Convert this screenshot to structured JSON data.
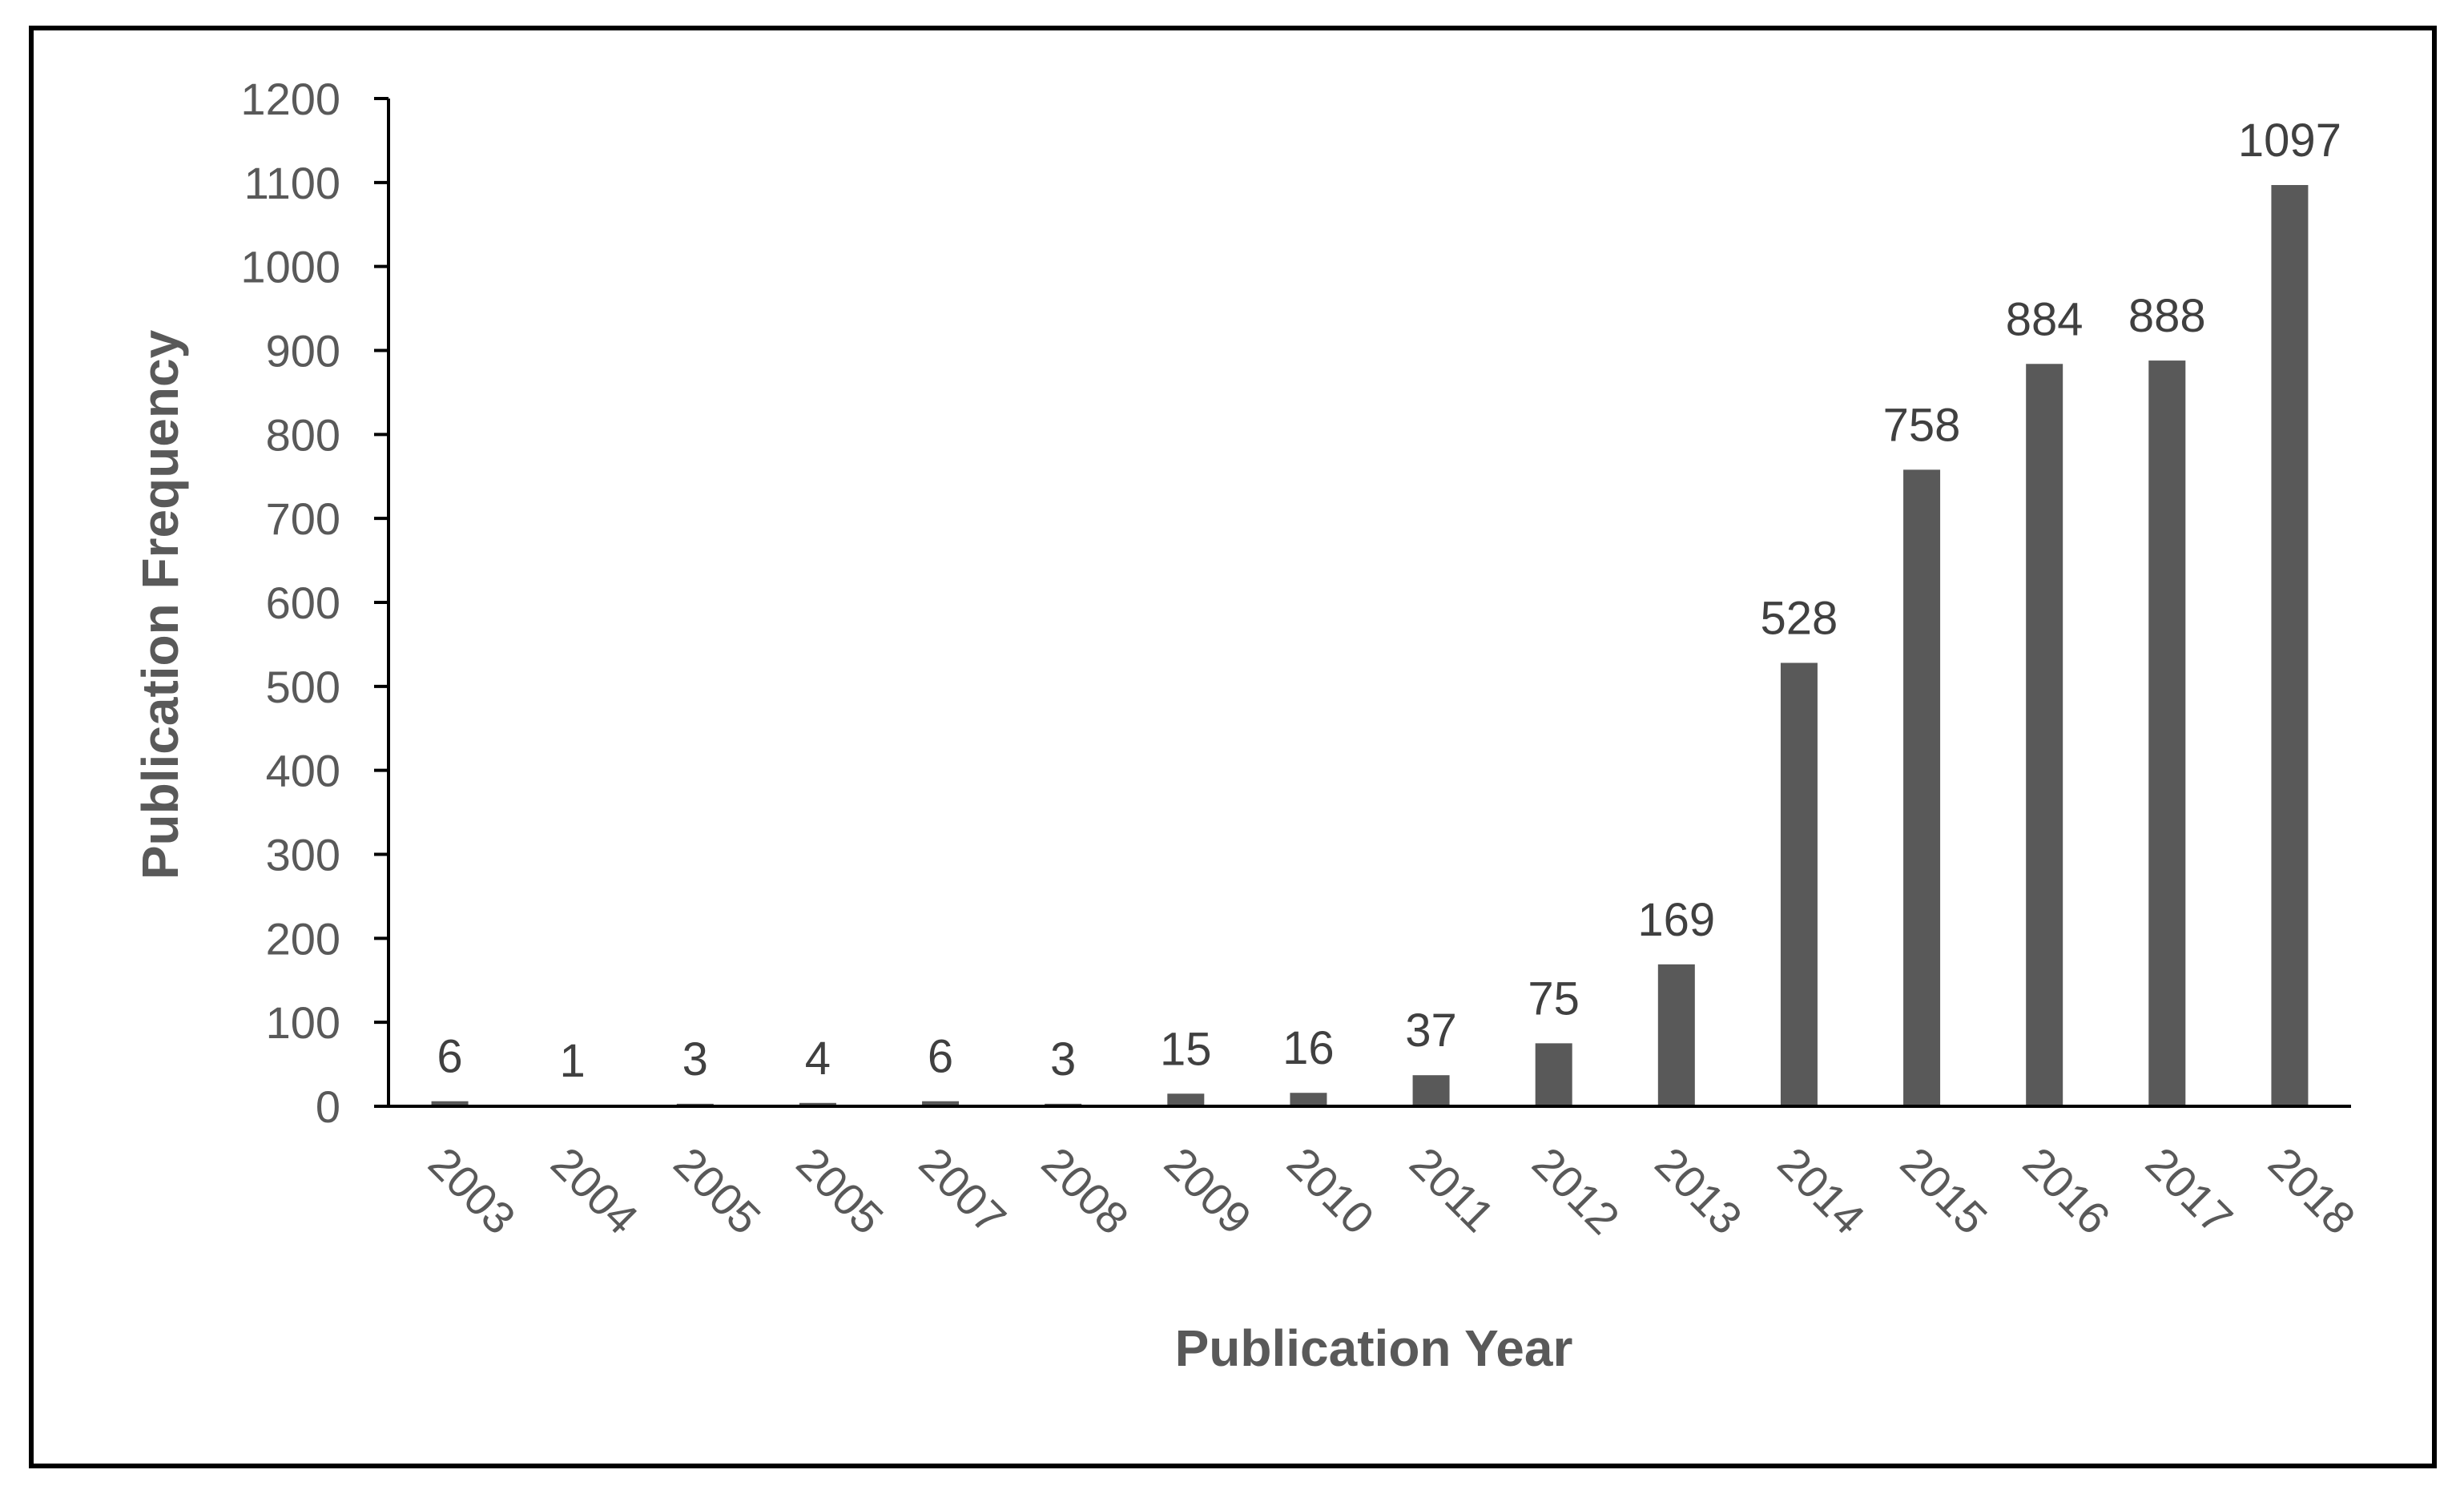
{
  "chart_data": {
    "type": "bar",
    "title": "",
    "xlabel": "Publication Year",
    "ylabel": "Publication Frequency",
    "categories": [
      "2003",
      "2004",
      "2005",
      "2005",
      "2007",
      "2008",
      "2009",
      "2010",
      "2011",
      "2012",
      "2013",
      "2014",
      "2015",
      "2016",
      "2017",
      "2018"
    ],
    "values": [
      6,
      1,
      3,
      4,
      6,
      3,
      15,
      16,
      37,
      75,
      169,
      528,
      758,
      884,
      888,
      1097
    ],
    "data_labels": [
      "6",
      "1",
      "3",
      "4",
      "6",
      "3",
      "15",
      "16",
      "37",
      "75",
      "169",
      "528",
      "758",
      "884",
      "888",
      "1097"
    ],
    "ylim": [
      0,
      1200
    ],
    "yticks": [
      "0",
      "100",
      "200",
      "300",
      "400",
      "500",
      "600",
      "700",
      "800",
      "900",
      "1000",
      "1100",
      "1200"
    ],
    "grid": false,
    "legend": "none",
    "bar_color": "#595959",
    "axis_color": "#000000",
    "text_color": "#595959"
  }
}
